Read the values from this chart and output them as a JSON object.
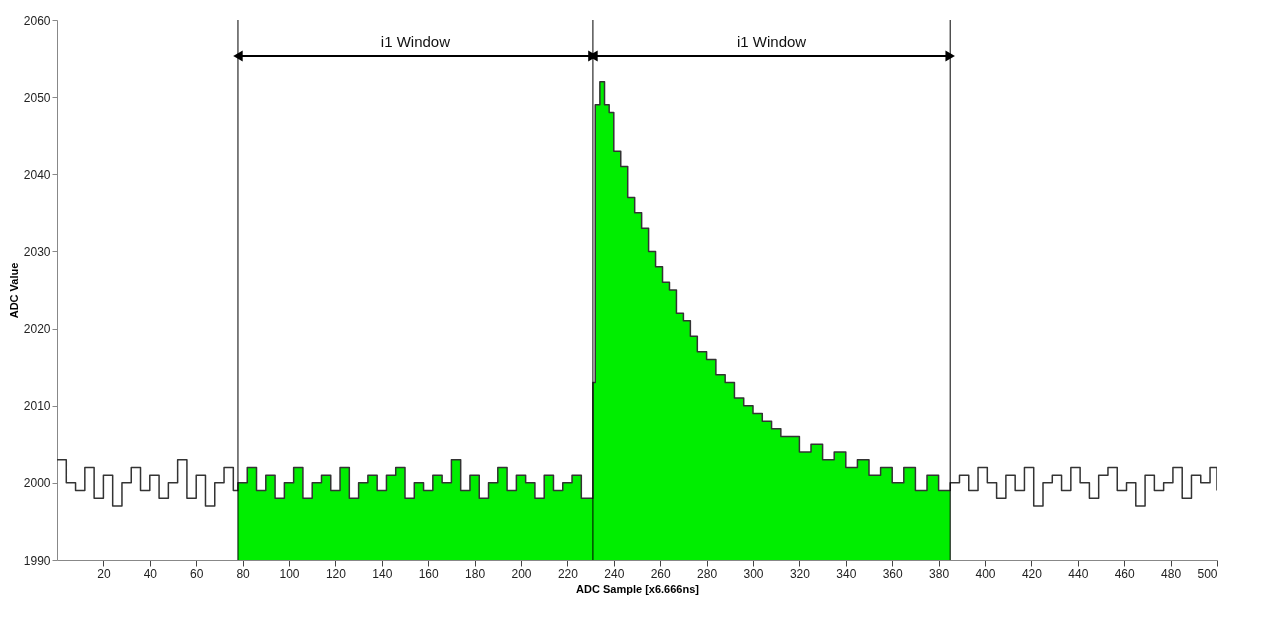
{
  "chart_data": {
    "type": "step",
    "xlabel": "ADC Sample [x6.666ns]",
    "ylabel": "ADC Value",
    "xlim": [
      0,
      500
    ],
    "xticks": [
      20,
      40,
      60,
      80,
      100,
      120,
      140,
      160,
      180,
      200,
      220,
      240,
      260,
      280,
      300,
      320,
      340,
      360,
      380,
      400,
      420,
      440,
      460,
      480,
      500
    ],
    "ylim": [
      1990,
      2060
    ],
    "yticks": [
      1990,
      2000,
      2010,
      2020,
      2030,
      2040,
      2050,
      2060
    ],
    "grid": false,
    "ref_lines": [
      {
        "axis": "x",
        "value": 78,
        "color": "#000000"
      },
      {
        "axis": "x",
        "value": 231,
        "color": "#000000"
      },
      {
        "axis": "x",
        "value": 385,
        "color": "#000000"
      }
    ],
    "annotations": [
      "i1 Window",
      "i1 Window"
    ],
    "series": [
      {
        "type": "area",
        "color": "#00ee00",
        "x": [
          78,
          82,
          86,
          90,
          94,
          98,
          102,
          106,
          110,
          114,
          118,
          122,
          126,
          130,
          134,
          138,
          142,
          146,
          150,
          154,
          158,
          162,
          166,
          170,
          174,
          178,
          182,
          186,
          190,
          194,
          198,
          202,
          206,
          210,
          214,
          218,
          222,
          226,
          230,
          231,
          232,
          234,
          236,
          238,
          240,
          243,
          246,
          249,
          252,
          255,
          258,
          261,
          264,
          267,
          270,
          273,
          276,
          280,
          284,
          288,
          292,
          296,
          300,
          304,
          308,
          312,
          316,
          320,
          325,
          330,
          335,
          340,
          345,
          350,
          355,
          360,
          365,
          370,
          375,
          380,
          385
        ],
        "values": [
          2000,
          2002,
          1999,
          2001,
          1998,
          2000,
          2002,
          1998,
          2000,
          2001,
          1999,
          2002,
          1998,
          2000,
          2001,
          1999,
          2001,
          2002,
          1998,
          2000,
          1999,
          2001,
          2000,
          2003,
          1999,
          2001,
          1998,
          2000,
          2002,
          1999,
          2001,
          2000,
          1998,
          2001,
          1999,
          2000,
          2001,
          1998,
          1998,
          2013,
          2049,
          2052,
          2049,
          2048,
          2043,
          2041,
          2037,
          2035,
          2033,
          2030,
          2028,
          2026,
          2025,
          2022,
          2021,
          2019,
          2017,
          2016,
          2014,
          2013,
          2011,
          2010,
          2009,
          2008,
          2007,
          2006,
          2006,
          2004,
          2005,
          2003,
          2004,
          2002,
          2003,
          2001,
          2002,
          2000,
          2002,
          1999,
          2001,
          1999,
          2000
        ]
      },
      {
        "type": "step",
        "color": "#333333",
        "x": [
          0,
          4,
          8,
          12,
          16,
          20,
          24,
          28,
          32,
          36,
          40,
          44,
          48,
          52,
          56,
          60,
          64,
          68,
          72,
          76,
          78,
          82,
          86,
          90,
          94,
          98,
          102,
          106,
          110,
          114,
          118,
          122,
          126,
          130,
          134,
          138,
          142,
          146,
          150,
          154,
          158,
          162,
          166,
          170,
          174,
          178,
          182,
          186,
          190,
          194,
          198,
          202,
          206,
          210,
          214,
          218,
          222,
          226,
          230,
          231,
          232,
          234,
          236,
          238,
          240,
          243,
          246,
          249,
          252,
          255,
          258,
          261,
          264,
          267,
          270,
          273,
          276,
          280,
          284,
          288,
          292,
          296,
          300,
          304,
          308,
          312,
          316,
          320,
          325,
          330,
          335,
          340,
          345,
          350,
          355,
          360,
          365,
          370,
          375,
          380,
          385,
          389,
          393,
          397,
          401,
          405,
          409,
          413,
          417,
          421,
          425,
          429,
          433,
          437,
          441,
          445,
          449,
          453,
          457,
          461,
          465,
          469,
          473,
          477,
          481,
          485,
          489,
          493,
          497,
          500
        ],
        "values": [
          2003,
          2000,
          1999,
          2002,
          1998,
          2001,
          1997,
          2000,
          2002,
          1999,
          2001,
          1998,
          2000,
          2003,
          1998,
          2001,
          1997,
          2000,
          2002,
          1999,
          2000,
          2002,
          1999,
          2001,
          1998,
          2000,
          2002,
          1998,
          2000,
          2001,
          1999,
          2002,
          1998,
          2000,
          2001,
          1999,
          2001,
          2002,
          1998,
          2000,
          1999,
          2001,
          2000,
          2003,
          1999,
          2001,
          1998,
          2000,
          2002,
          1999,
          2001,
          2000,
          1998,
          2001,
          1999,
          2000,
          2001,
          1998,
          1998,
          2013,
          2049,
          2052,
          2049,
          2048,
          2043,
          2041,
          2037,
          2035,
          2033,
          2030,
          2028,
          2026,
          2025,
          2022,
          2021,
          2019,
          2017,
          2016,
          2014,
          2013,
          2011,
          2010,
          2009,
          2008,
          2007,
          2006,
          2006,
          2004,
          2005,
          2003,
          2004,
          2002,
          2003,
          2001,
          2002,
          2000,
          2002,
          1999,
          2001,
          1999,
          2000,
          2001,
          1999,
          2002,
          2000,
          1998,
          2001,
          1999,
          2002,
          1997,
          2000,
          2001,
          1999,
          2002,
          2000,
          1998,
          2001,
          2002,
          1999,
          2000,
          1997,
          2001,
          1999,
          2000,
          2002,
          1998,
          2001,
          2000,
          2002,
          1999
        ]
      }
    ]
  }
}
